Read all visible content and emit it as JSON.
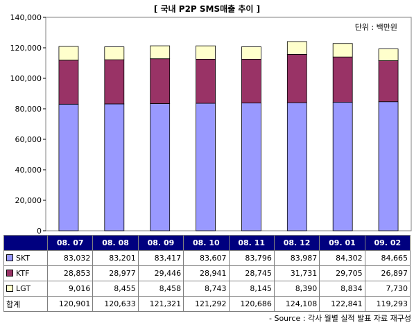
{
  "title": "[ 국내 P2P SMS매출 추이 ]",
  "unit": "단위 : 백만원",
  "source": "- Source : 각사 월별 실적 발표 자료 재구성",
  "total_label": "합계",
  "chart_data": {
    "type": "bar",
    "stacked": true,
    "categories": [
      "08. 07",
      "08. 08",
      "08. 09",
      "08. 10",
      "08. 11",
      "08. 12",
      "09. 01",
      "09. 02"
    ],
    "series": [
      {
        "name": "SKT",
        "color": "#9999ff",
        "values": [
          83032,
          83201,
          83417,
          83607,
          83796,
          83987,
          84302,
          84665
        ],
        "labels": [
          "83,032",
          "83,201",
          "83,417",
          "83,607",
          "83,796",
          "83,987",
          "84,302",
          "84,665"
        ]
      },
      {
        "name": "KTF",
        "color": "#993366",
        "values": [
          28853,
          28977,
          29446,
          28941,
          28745,
          31731,
          29705,
          26897
        ],
        "labels": [
          "28,853",
          "28,977",
          "29,446",
          "28,941",
          "28,745",
          "31,731",
          "29,705",
          "26,897"
        ]
      },
      {
        "name": "LGT",
        "color": "#ffffcc",
        "values": [
          9016,
          8455,
          8458,
          8743,
          8145,
          8390,
          8834,
          7730
        ],
        "labels": [
          "9,016",
          "8,455",
          "8,458",
          "8,743",
          "8,145",
          "8,390",
          "8,834",
          "7,730"
        ]
      }
    ],
    "totals": [
      "120,901",
      "120,633",
      "121,321",
      "121,292",
      "120,686",
      "124,108",
      "122,841",
      "119,293"
    ],
    "ylim": [
      0,
      140000
    ],
    "yticks": [
      "0",
      "20,000",
      "40,000",
      "60,000",
      "80,000",
      "100,000",
      "120,000",
      "140,000"
    ],
    "grid": false,
    "legend": "data-table"
  }
}
